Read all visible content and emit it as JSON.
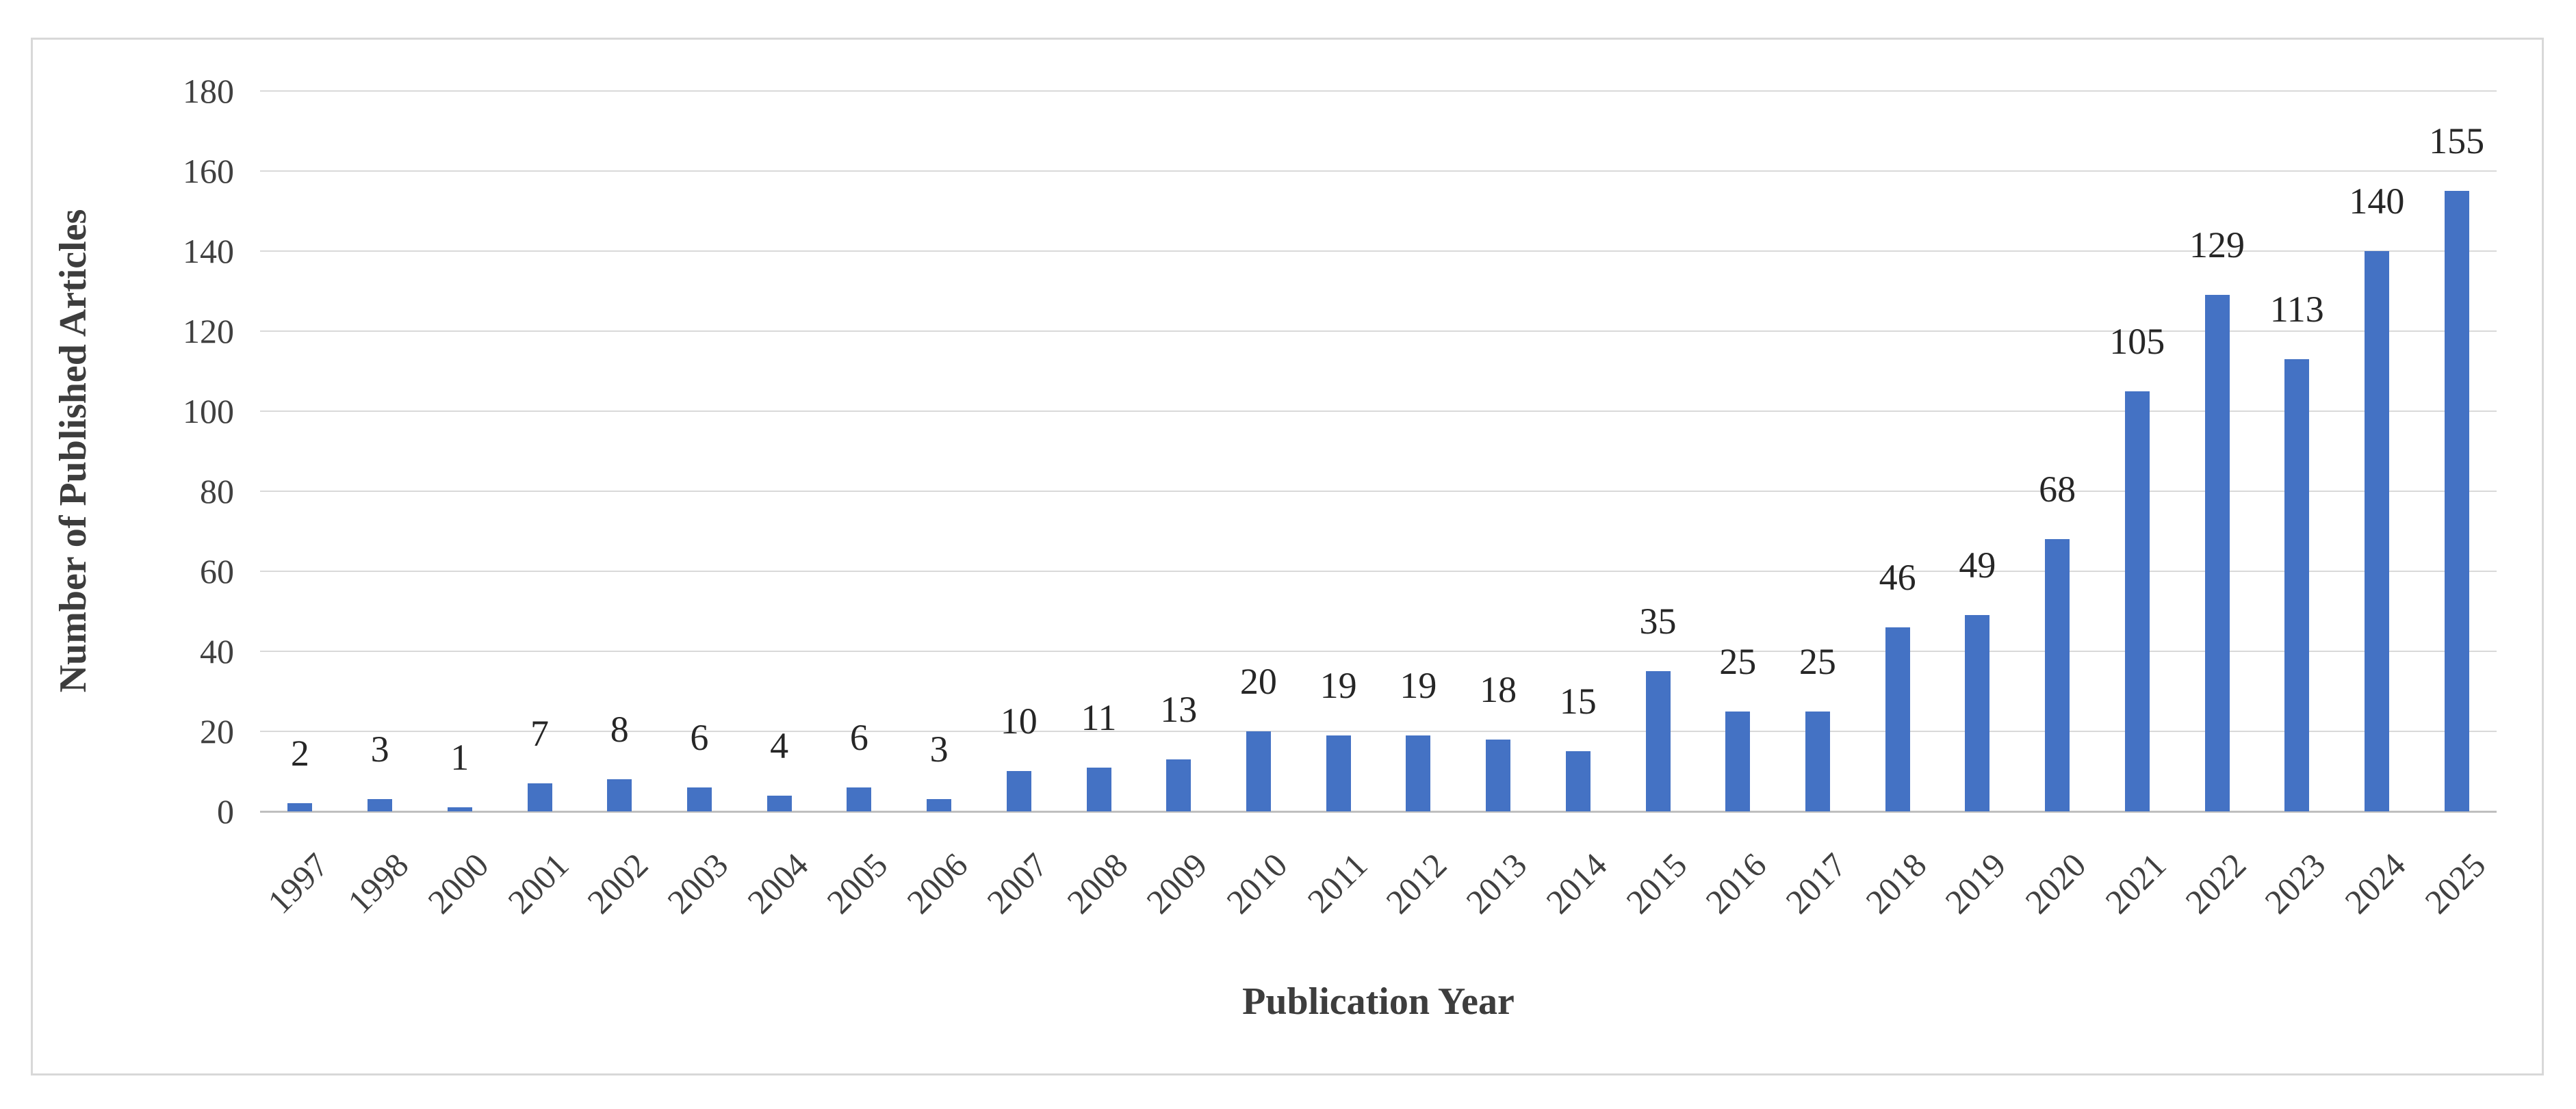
{
  "chart_data": {
    "type": "bar",
    "title": "",
    "xlabel": "Publication Year",
    "ylabel": "Number of Published Articles",
    "categories": [
      "1997",
      "1998",
      "2000",
      "2001",
      "2002",
      "2003",
      "2004",
      "2005",
      "2006",
      "2007",
      "2008",
      "2009",
      "2010",
      "2011",
      "2012",
      "2013",
      "2014",
      "2015",
      "2016",
      "2017",
      "2018",
      "2019",
      "2020",
      "2021",
      "2022",
      "2023",
      "2024",
      "2025"
    ],
    "values": [
      2,
      3,
      1,
      7,
      8,
      6,
      4,
      6,
      3,
      10,
      11,
      13,
      20,
      19,
      19,
      18,
      15,
      35,
      25,
      25,
      46,
      49,
      68,
      105,
      129,
      113,
      140,
      155
    ],
    "ylim": [
      0,
      180
    ],
    "yticks": [
      0,
      20,
      40,
      60,
      80,
      100,
      120,
      140,
      160,
      180
    ],
    "grid": true,
    "legend": "none",
    "data_labels": true,
    "colors": {
      "bar": "#4472C4",
      "gridline": "#D9D9D9",
      "axis_line": "#BFBFBF",
      "frame_border": "#D8D8D8",
      "value_label": "#262626",
      "tick_label": "#404040",
      "axis_title": "#3D3D3D"
    }
  }
}
